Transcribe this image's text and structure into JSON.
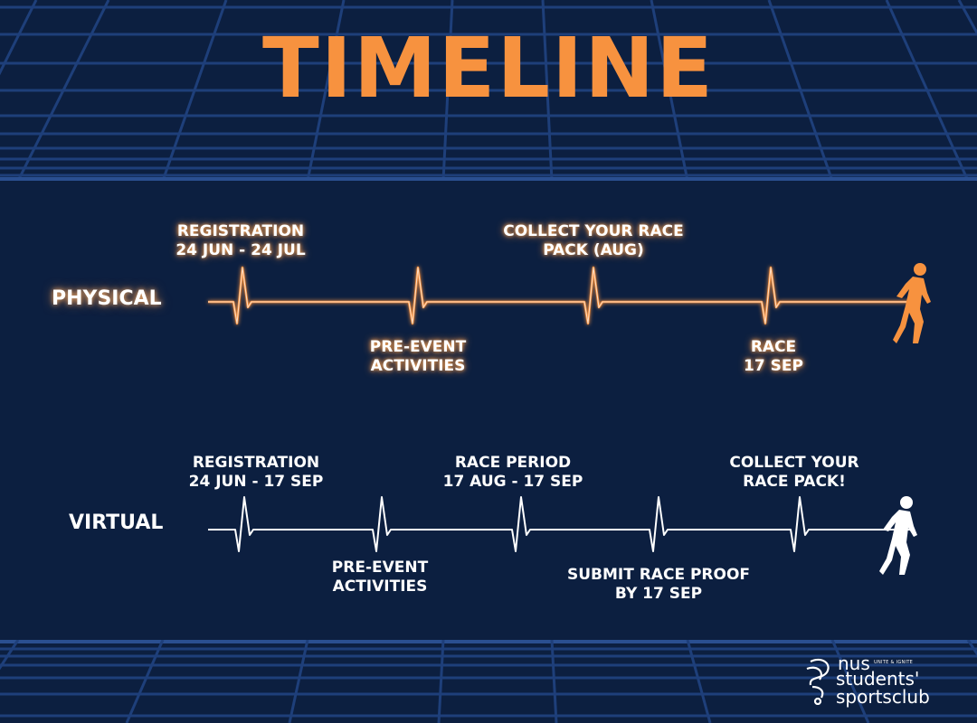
{
  "title": "TIMELINE",
  "colors": {
    "background": "#0c1f40",
    "accent": "#f7923f",
    "grid": "#1e3f7a",
    "text": "#ffffff"
  },
  "physical": {
    "label": "PHYSICAL",
    "milestones_above": [
      {
        "line1": "REGISTRATION",
        "line2": "24 JUN - 24 JUL"
      },
      {
        "line1": "COLLECT YOUR RACE",
        "line2": "PACK (AUG)"
      }
    ],
    "milestones_below": [
      {
        "line1": "PRE-EVENT",
        "line2": "ACTIVITIES"
      },
      {
        "line1": "RACE",
        "line2": "17 SEP"
      }
    ],
    "runner_icon": "runner-icon"
  },
  "virtual": {
    "label": "VIRTUAL",
    "milestones_above": [
      {
        "line1": "REGISTRATION",
        "line2": "24 JUN - 17 SEP"
      },
      {
        "line1": "RACE PERIOD",
        "line2": "17 AUG - 17 SEP"
      },
      {
        "line1": "COLLECT YOUR",
        "line2": "RACE PACK!"
      }
    ],
    "milestones_below": [
      {
        "line1": "PRE-EVENT",
        "line2": "ACTIVITIES"
      },
      {
        "line1": "SUBMIT RACE PROOF",
        "line2": "BY 17 SEP"
      }
    ],
    "runner_icon": "runner-icon"
  },
  "logo": {
    "line1": "nus",
    "tagline": "UNITE & IGNITE",
    "line2": "students'",
    "line3": "sportsclub"
  }
}
